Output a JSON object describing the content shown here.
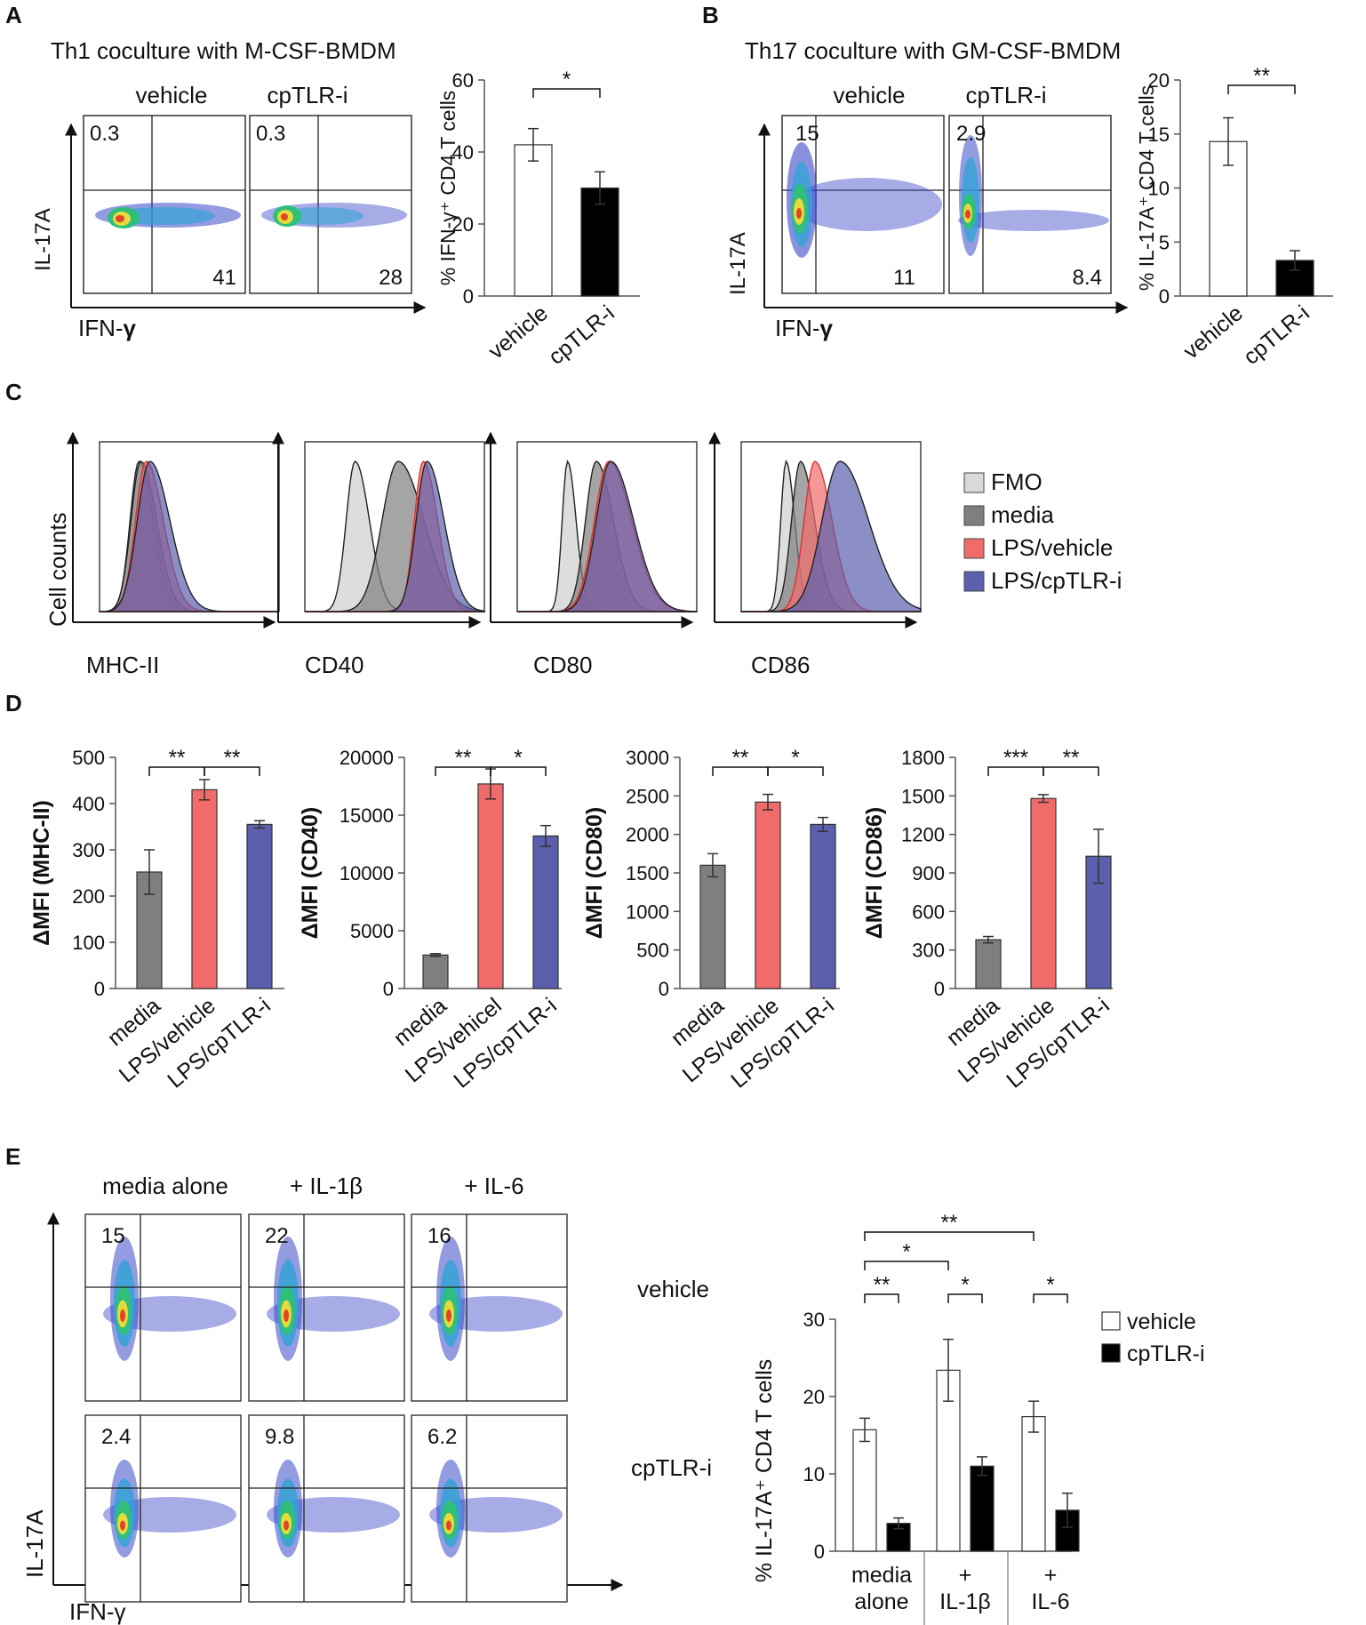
{
  "panels": {
    "A": {
      "letter": "A",
      "title": "Th1 coculture with M-CSF-BMDM",
      "plot_labels": [
        "vehicle",
        "cpTLR-i"
      ],
      "x_axis": "IFN-",
      "x_axis_sym": "γ",
      "y_axis": "IL-17A",
      "quadrants": [
        {
          "ul": "0.3",
          "lr": "41"
        },
        {
          "ul": "0.3",
          "lr": "28"
        }
      ]
    },
    "B": {
      "letter": "B",
      "title": "Th17 coculture with GM-CSF-BMDM",
      "plot_labels": [
        "vehicle",
        "cpTLR-i"
      ],
      "x_axis": "IFN-",
      "x_axis_sym": "γ",
      "y_axis": "IL-17A",
      "quadrants": [
        {
          "ul": "15",
          "lr": "11"
        },
        {
          "ul": "2.9",
          "lr": "8.4"
        }
      ]
    },
    "C": {
      "letter": "C",
      "y_axis": "Cell counts",
      "markers": [
        "MHC-II",
        "CD40",
        "CD80",
        "CD86"
      ],
      "legend": [
        {
          "label": "FMO",
          "color": "#d9d9d9"
        },
        {
          "label": "media",
          "color": "#7f7f7f"
        },
        {
          "label": "LPS/vehicle",
          "color": "#f26b6b"
        },
        {
          "label": "LPS/cpTLR-i",
          "color": "#5b5fae"
        }
      ]
    },
    "D": {
      "letter": "D"
    },
    "E": {
      "letter": "E",
      "columns": [
        "media alone",
        "+ IL-1β",
        "+ IL-6"
      ],
      "rows": [
        "vehicle",
        "cpTLR-i"
      ],
      "x_axis": "IFN-γ",
      "y_axis": "IL-17A",
      "quadrant_values": [
        [
          "15",
          "22",
          "16"
        ],
        [
          "2.4",
          "9.8",
          "6.2"
        ]
      ]
    }
  },
  "chart_data": [
    {
      "id": "A-bar",
      "type": "bar",
      "categories": [
        "vehicle",
        "cpTLR-i"
      ],
      "values": [
        42,
        30
      ],
      "errors": [
        4.5,
        4.5
      ],
      "colors": [
        "#ffffff",
        "#000000"
      ],
      "ylabel": "% IFN-γ⁺ CD4 T cells",
      "ylim": [
        0,
        60
      ],
      "yticks": [
        0,
        20,
        40,
        60
      ],
      "significance": [
        {
          "from": 0,
          "to": 1,
          "label": "*"
        }
      ]
    },
    {
      "id": "B-bar",
      "type": "bar",
      "categories": [
        "vehicle",
        "cpTLR-i"
      ],
      "values": [
        14.3,
        3.3
      ],
      "errors": [
        2.2,
        0.9
      ],
      "colors": [
        "#ffffff",
        "#000000"
      ],
      "ylabel": "% IL-17A⁺ CD4 T cells",
      "ylim": [
        0,
        20
      ],
      "yticks": [
        0,
        5,
        10,
        15,
        20
      ],
      "significance": [
        {
          "from": 0,
          "to": 1,
          "label": "**"
        }
      ]
    },
    {
      "id": "D1",
      "type": "bar",
      "categories": [
        "media",
        "LPS/vehicle",
        "LPS/cpTLR-i"
      ],
      "values": [
        252,
        430,
        355
      ],
      "errors": [
        48,
        22,
        8
      ],
      "colors": [
        "#7f7f7f",
        "#f26b6b",
        "#5b5fae"
      ],
      "ylabel": "ΔMFI (MHC-II)",
      "ylim": [
        0,
        500
      ],
      "yticks": [
        0,
        100,
        200,
        300,
        400,
        500
      ],
      "significance": [
        {
          "from": 0,
          "to": 1,
          "label": "**"
        },
        {
          "from": 1,
          "to": 2,
          "label": "**"
        }
      ]
    },
    {
      "id": "D2",
      "type": "bar",
      "categories": [
        "media",
        "LPS/vehicel",
        "LPS/cpTLR-i"
      ],
      "values": [
        2900,
        17700,
        13200
      ],
      "errors": [
        120,
        1300,
        900
      ],
      "colors": [
        "#7f7f7f",
        "#f26b6b",
        "#5b5fae"
      ],
      "ylabel": "ΔMFI (CD40)",
      "ylim": [
        0,
        20000
      ],
      "yticks": [
        0,
        5000,
        10000,
        15000,
        20000
      ],
      "significance": [
        {
          "from": 0,
          "to": 1,
          "label": "**"
        },
        {
          "from": 1,
          "to": 2,
          "label": "*"
        }
      ]
    },
    {
      "id": "D3",
      "type": "bar",
      "categories": [
        "media",
        "LPS/vehicle",
        "LPS/cpTLR-i"
      ],
      "values": [
        1600,
        2420,
        2130
      ],
      "errors": [
        150,
        100,
        90
      ],
      "colors": [
        "#7f7f7f",
        "#f26b6b",
        "#5b5fae"
      ],
      "ylabel": "ΔMFI (CD80)",
      "ylim": [
        0,
        3000
      ],
      "yticks": [
        0,
        500,
        1000,
        1500,
        2000,
        2500,
        3000
      ],
      "significance": [
        {
          "from": 0,
          "to": 1,
          "label": "**"
        },
        {
          "from": 1,
          "to": 2,
          "label": "*"
        }
      ]
    },
    {
      "id": "D4",
      "type": "bar",
      "categories": [
        "media",
        "LPS/vehicle",
        "LPS/cpTLR-i"
      ],
      "values": [
        380,
        1480,
        1030
      ],
      "errors": [
        25,
        30,
        210
      ],
      "colors": [
        "#7f7f7f",
        "#f26b6b",
        "#5b5fae"
      ],
      "ylabel": "ΔMFI (CD86)",
      "ylim": [
        0,
        1800
      ],
      "yticks": [
        0,
        300,
        600,
        900,
        1200,
        1500,
        1800
      ],
      "significance": [
        {
          "from": 0,
          "to": 1,
          "label": "***"
        },
        {
          "from": 1,
          "to": 2,
          "label": "**"
        }
      ]
    },
    {
      "id": "E-bar",
      "type": "bar",
      "categories": [
        "media\nalone",
        "+\nIL-1β",
        "+\nIL-6"
      ],
      "series": [
        {
          "name": "vehicle",
          "values": [
            15.7,
            23.4,
            17.4
          ],
          "errors": [
            1.5,
            4.0,
            2.0
          ],
          "color": "#ffffff"
        },
        {
          "name": "cpTLR-i",
          "values": [
            3.6,
            11.0,
            5.3
          ],
          "errors": [
            0.7,
            1.2,
            2.2
          ],
          "color": "#000000"
        }
      ],
      "ylabel": "% IL-17A⁺ CD4 T cells",
      "ylim": [
        0,
        30
      ],
      "yticks": [
        0,
        10,
        20,
        30
      ],
      "significance": [
        {
          "from": "0v",
          "to": "0c",
          "label": "**"
        },
        {
          "from": "1v",
          "to": "1c",
          "label": "*"
        },
        {
          "from": "2v",
          "to": "2c",
          "label": "*"
        },
        {
          "from": "0v",
          "to": "1v",
          "label": "*"
        },
        {
          "from": "0v",
          "to": "2v",
          "label": "**"
        }
      ]
    }
  ]
}
